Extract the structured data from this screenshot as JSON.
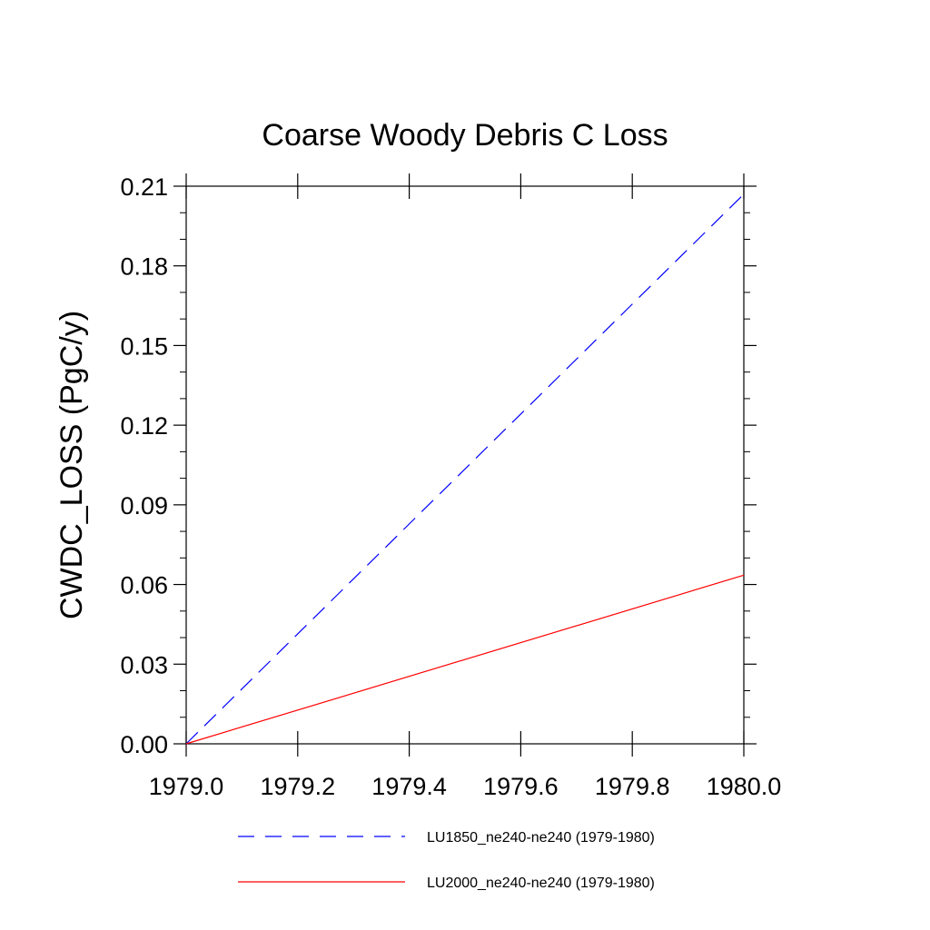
{
  "chart_data": {
    "type": "line",
    "title": "Coarse Woody Debris C Loss",
    "xlabel": "",
    "ylabel": "CWDC_LOSS  (PgC/y)",
    "xlim": [
      1979.0,
      1980.0
    ],
    "ylim": [
      0.0,
      0.21
    ],
    "xticks": [
      "1979.0",
      "1979.2",
      "1979.4",
      "1979.6",
      "1979.8",
      "1980.0"
    ],
    "yticks": [
      "0.00",
      "0.03",
      "0.06",
      "0.09",
      "0.12",
      "0.15",
      "0.18",
      "0.21"
    ],
    "grid": false,
    "legend_position": "bottom",
    "series": [
      {
        "name": "LU1850_ne240-ne240 (1979-1980)",
        "color": "#0000ff",
        "dash": "dashed",
        "x": [
          1979.0,
          1980.0
        ],
        "y": [
          0.0,
          0.207
        ]
      },
      {
        "name": "LU2000_ne240-ne240 (1979-1980)",
        "color": "#ff0000",
        "dash": "solid",
        "x": [
          1979.0,
          1980.0
        ],
        "y": [
          0.0,
          0.0635
        ]
      }
    ]
  }
}
